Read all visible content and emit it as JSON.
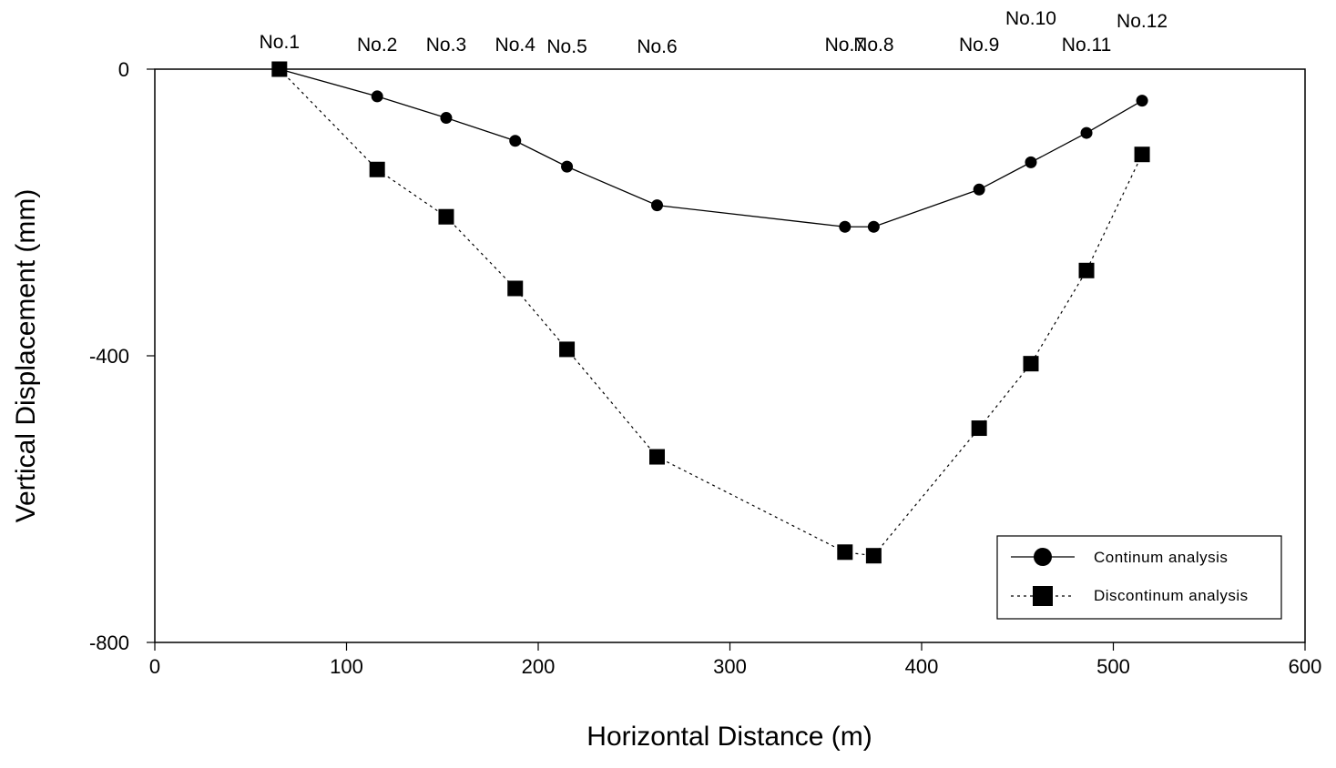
{
  "chart_data": {
    "type": "line",
    "title": "",
    "xlabel": "Horizontal Distance (m)",
    "ylabel": "Vertical Displacement (mm)",
    "xlim": [
      0,
      600
    ],
    "ylim": [
      -800,
      0
    ],
    "xticks": [
      0,
      100,
      200,
      300,
      400,
      500,
      600
    ],
    "xtick_labels": [
      "0",
      "100",
      "200",
      "300",
      "400",
      "500",
      "600"
    ],
    "yticks": [
      0,
      -400,
      -800
    ],
    "ytick_labels": [
      "0",
      "-400",
      "-800"
    ],
    "grid": false,
    "legend_position": "bottom-right",
    "stations": [
      {
        "label": "No.1",
        "x": 65
      },
      {
        "label": "No.2",
        "x": 116
      },
      {
        "label": "No.3",
        "x": 152
      },
      {
        "label": "No.4",
        "x": 188
      },
      {
        "label": "No.5",
        "x": 215
      },
      {
        "label": "No.6",
        "x": 262
      },
      {
        "label": "No.7",
        "x": 360
      },
      {
        "label": "No.8",
        "x": 375
      },
      {
        "label": "No.9",
        "x": 430
      },
      {
        "label": "No.10",
        "x": 457
      },
      {
        "label": "No.11",
        "x": 486
      },
      {
        "label": "No.12",
        "x": 515
      }
    ],
    "x": [
      65,
      116,
      152,
      188,
      215,
      262,
      360,
      375,
      430,
      457,
      486,
      515
    ],
    "series": [
      {
        "name": "Continum analysis",
        "marker": "circle",
        "line": "solid",
        "color": "#000000",
        "values": [
          0,
          -38,
          -68,
          -100,
          -136,
          -190,
          -220,
          -220,
          -168,
          -130,
          -89,
          -44
        ]
      },
      {
        "name": "Discontinum analysis",
        "marker": "square",
        "line": "dotted",
        "color": "#000000",
        "values": [
          0,
          -140,
          -206,
          -306,
          -391,
          -541,
          -674,
          -679,
          -501,
          -411,
          -281,
          -119
        ]
      }
    ]
  }
}
